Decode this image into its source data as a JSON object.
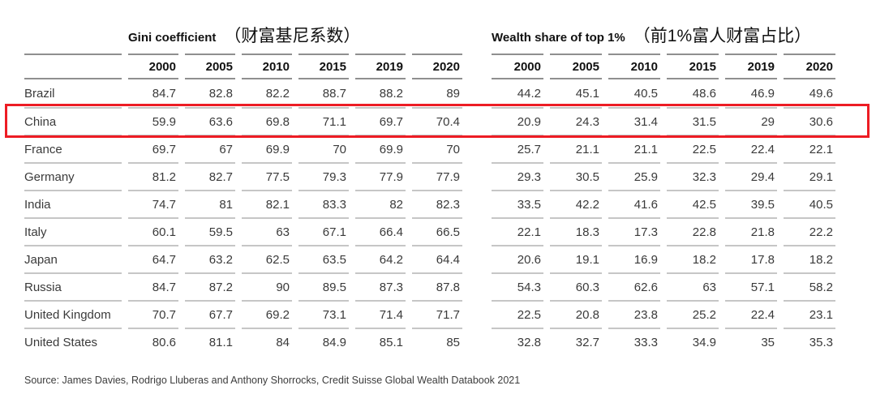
{
  "chart_data": {
    "type": "table",
    "column_groups": [
      {
        "title_en": "Gini coefficient",
        "title_zh": "（财富基尼系数）",
        "years": [
          "2000",
          "2005",
          "2010",
          "2015",
          "2019",
          "2020"
        ]
      },
      {
        "title_en": "Wealth share of top 1%",
        "title_zh": "（前1%富人财富占比）",
        "years": [
          "2000",
          "2005",
          "2010",
          "2015",
          "2019",
          "2020"
        ]
      }
    ],
    "rows": [
      {
        "country": "Brazil",
        "gini": [
          "84.7",
          "82.8",
          "82.2",
          "88.7",
          "88.2",
          "89"
        ],
        "wealth": [
          "44.2",
          "45.1",
          "40.5",
          "48.6",
          "46.9",
          "49.6"
        ]
      },
      {
        "country": "China",
        "gini": [
          "59.9",
          "63.6",
          "69.8",
          "71.1",
          "69.7",
          "70.4"
        ],
        "wealth": [
          "20.9",
          "24.3",
          "31.4",
          "31.5",
          "29",
          "30.6"
        ]
      },
      {
        "country": "France",
        "gini": [
          "69.7",
          "67",
          "69.9",
          "70",
          "69.9",
          "70"
        ],
        "wealth": [
          "25.7",
          "21.1",
          "21.1",
          "22.5",
          "22.4",
          "22.1"
        ]
      },
      {
        "country": "Germany",
        "gini": [
          "81.2",
          "82.7",
          "77.5",
          "79.3",
          "77.9",
          "77.9"
        ],
        "wealth": [
          "29.3",
          "30.5",
          "25.9",
          "32.3",
          "29.4",
          "29.1"
        ]
      },
      {
        "country": "India",
        "gini": [
          "74.7",
          "81",
          "82.1",
          "83.3",
          "82",
          "82.3"
        ],
        "wealth": [
          "33.5",
          "42.2",
          "41.6",
          "42.5",
          "39.5",
          "40.5"
        ]
      },
      {
        "country": "Italy",
        "gini": [
          "60.1",
          "59.5",
          "63",
          "67.1",
          "66.4",
          "66.5"
        ],
        "wealth": [
          "22.1",
          "18.3",
          "17.3",
          "22.8",
          "21.8",
          "22.2"
        ]
      },
      {
        "country": "Japan",
        "gini": [
          "64.7",
          "63.2",
          "62.5",
          "63.5",
          "64.2",
          "64.4"
        ],
        "wealth": [
          "20.6",
          "19.1",
          "16.9",
          "18.2",
          "17.8",
          "18.2"
        ]
      },
      {
        "country": "Russia",
        "gini": [
          "84.7",
          "87.2",
          "90",
          "89.5",
          "87.3",
          "87.8"
        ],
        "wealth": [
          "54.3",
          "60.3",
          "62.6",
          "63",
          "57.1",
          "58.2"
        ]
      },
      {
        "country": "United Kingdom",
        "gini": [
          "70.7",
          "67.7",
          "69.2",
          "73.1",
          "71.4",
          "71.7"
        ],
        "wealth": [
          "22.5",
          "20.8",
          "23.8",
          "25.2",
          "22.4",
          "23.1"
        ]
      },
      {
        "country": "United States",
        "gini": [
          "80.6",
          "81.1",
          "84",
          "84.9",
          "85.1",
          "85"
        ],
        "wealth": [
          "32.8",
          "32.7",
          "33.3",
          "34.9",
          "35",
          "35.3"
        ]
      }
    ],
    "highlighted_row": "China",
    "source": "Source: James Davies, Rodrigo Lluberas and Anthony Shorrocks, Credit Suisse Global Wealth Databook 2021"
  },
  "highlight_color": "#ed1c24"
}
